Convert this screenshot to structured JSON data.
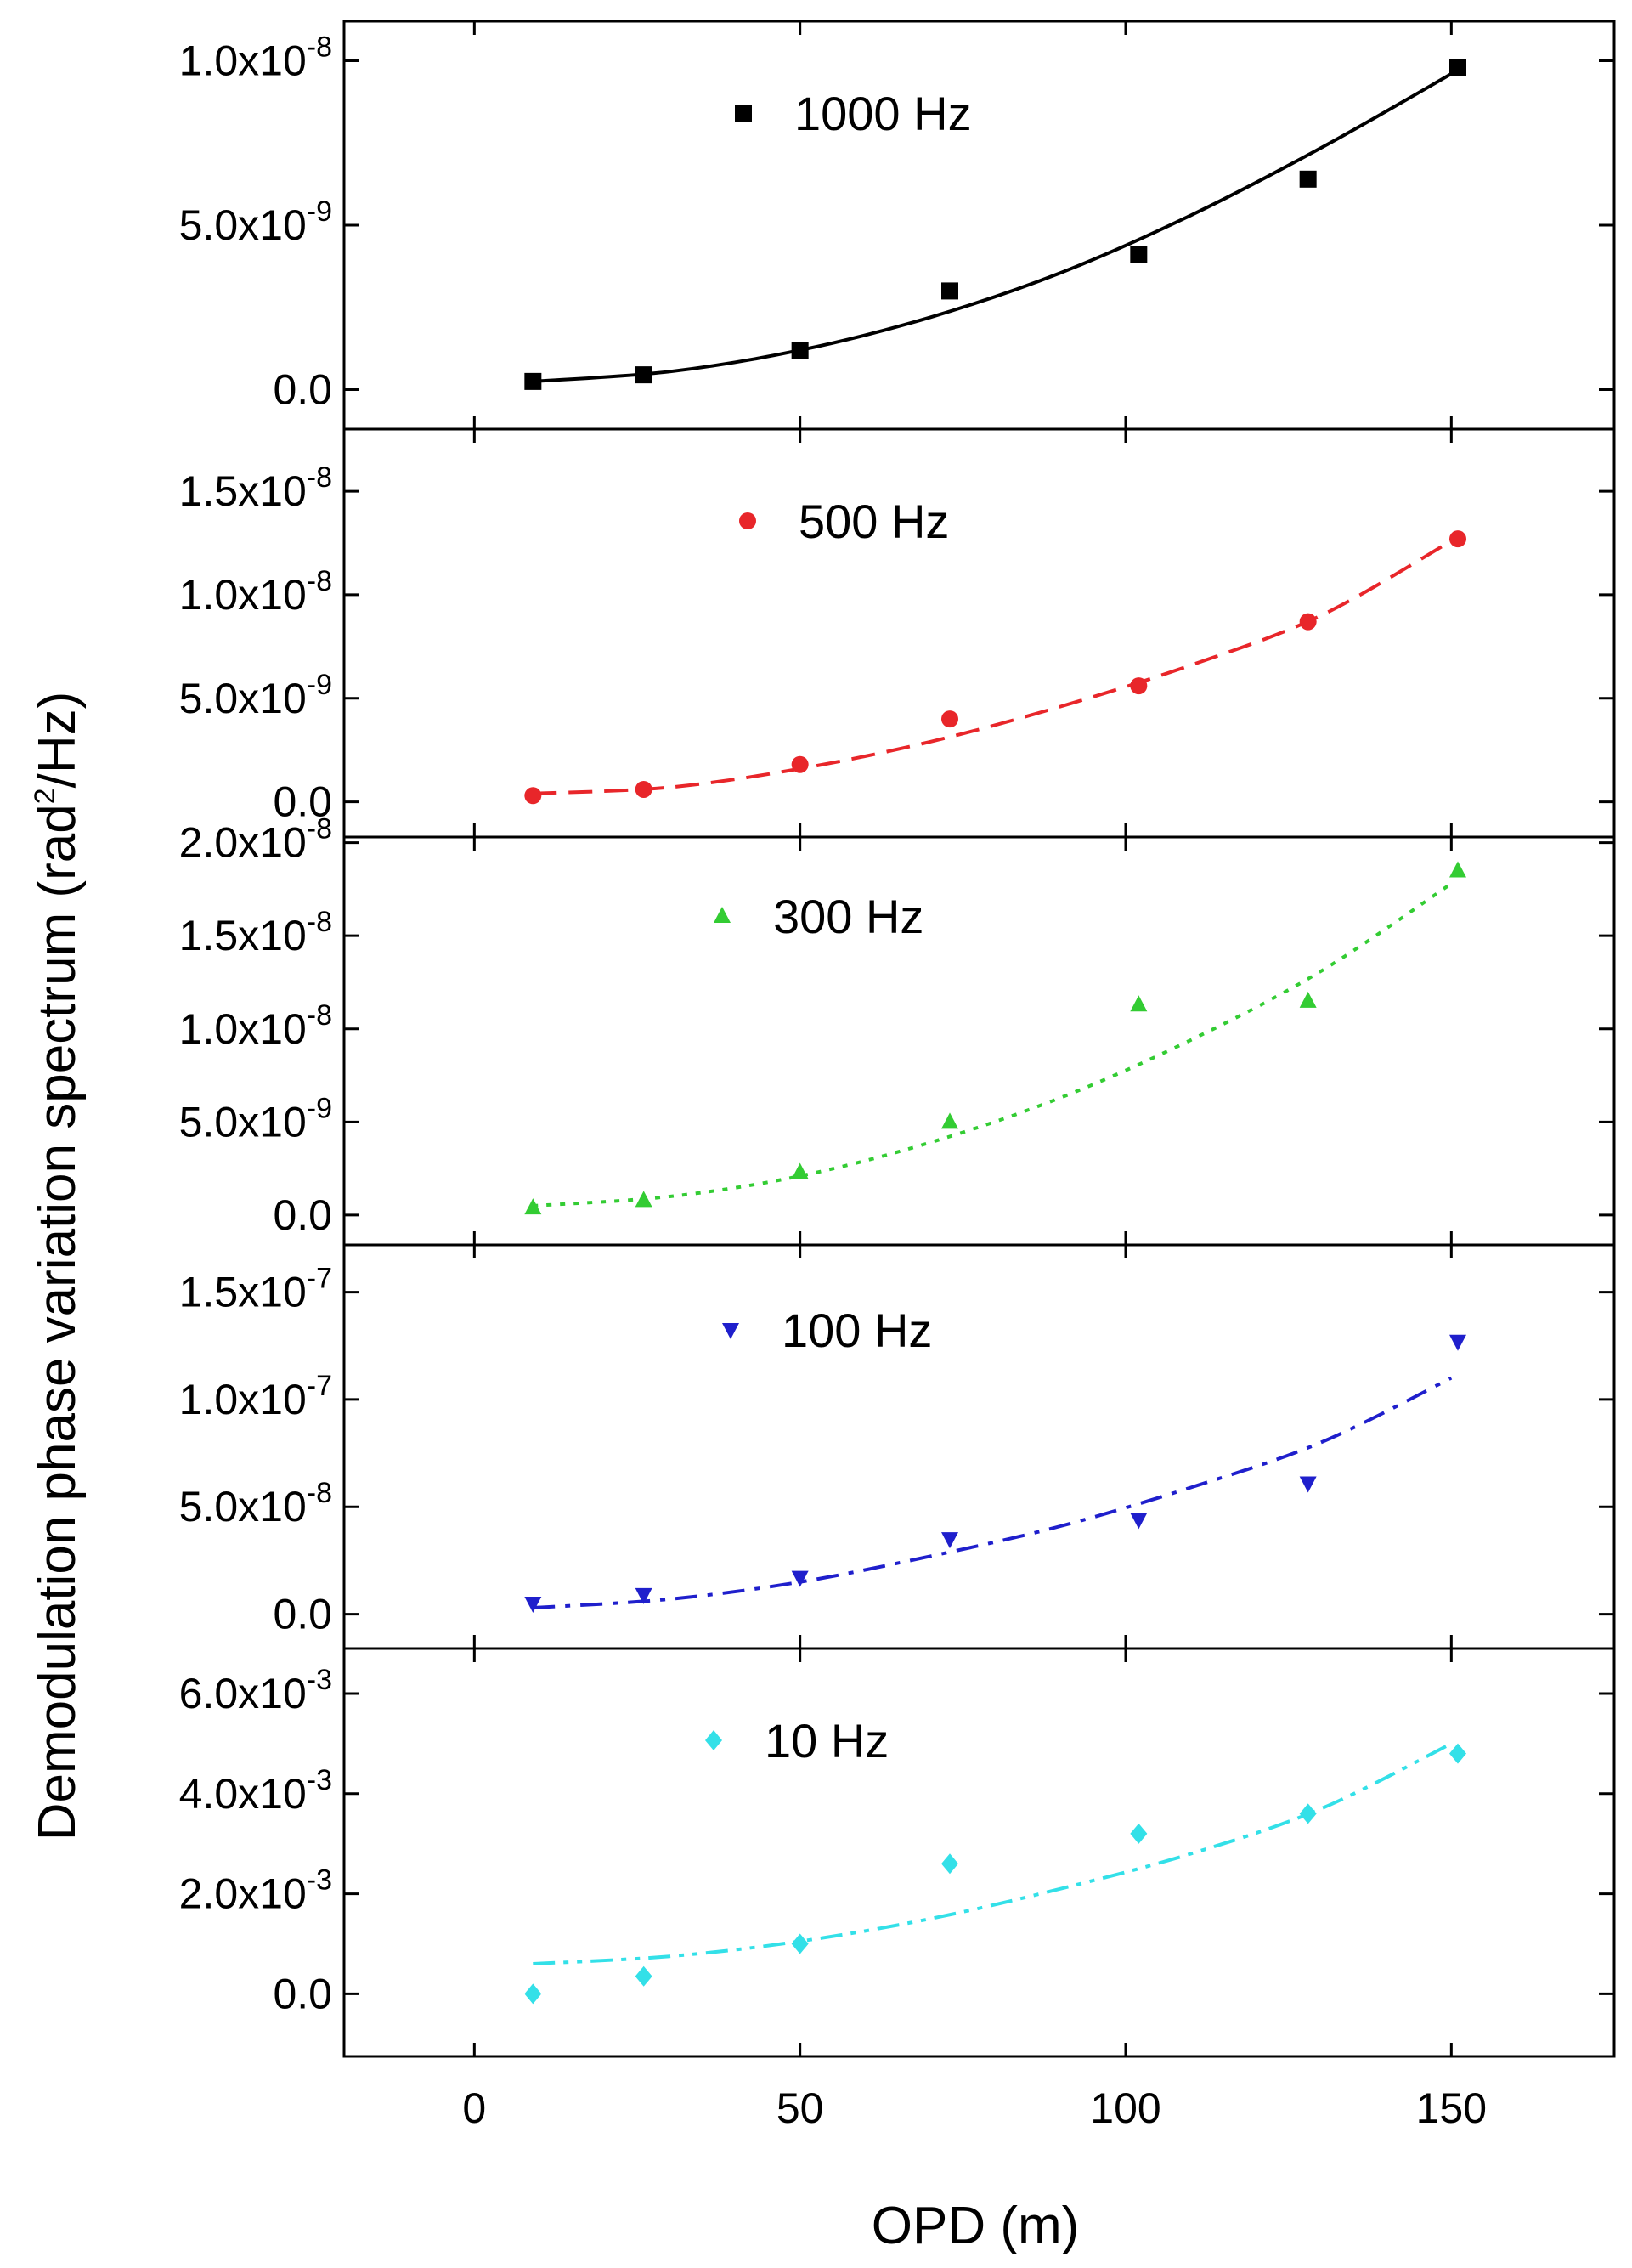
{
  "chart_data": {
    "type": "scatter",
    "stacked_panels": true,
    "xlabel": "OPD (m)",
    "ylabel_parts": [
      "Demodulation phase variation spectrum (rad",
      "2",
      "/Hz)"
    ],
    "xlim": [
      -20,
      175
    ],
    "xticks": [
      {
        "v": 0,
        "label": "0"
      },
      {
        "v": 50,
        "label": "50"
      },
      {
        "v": 100,
        "label": "100"
      },
      {
        "v": 150,
        "label": "150"
      }
    ],
    "panels": [
      {
        "legend": "1000 Hz",
        "marker": "square",
        "color": "#000000",
        "fit_style": "solid",
        "ylim": [
          -1.2e-09,
          1.12e-08
        ],
        "yticks": [
          {
            "v": 0,
            "m": "0.0",
            "e": ""
          },
          {
            "v": 5e-09,
            "m": "5.0x10",
            "e": "-9"
          },
          {
            "v": 1e-08,
            "m": "1.0x10",
            "e": "-8"
          }
        ],
        "x": [
          9,
          26,
          50,
          73,
          102,
          128,
          151
        ],
        "y": [
          2.5e-10,
          4.5e-10,
          1.2e-09,
          3e-09,
          4.1e-09,
          6.4e-09,
          9.8e-09
        ],
        "fit_x": [
          9,
          30,
          50,
          70,
          90,
          110,
          130,
          150
        ],
        "fit_y": [
          2.5e-10,
          5.5e-10,
          1.2e-09,
          2.2e-09,
          3.55e-09,
          5.3e-09,
          7.35e-09,
          9.6e-09
        ]
      },
      {
        "legend": "500 Hz",
        "marker": "circle",
        "color": "#e8262a",
        "fit_style": "dashed",
        "ylim": [
          -1.7e-09,
          1.8e-08
        ],
        "yticks": [
          {
            "v": 0,
            "m": "0.0",
            "e": ""
          },
          {
            "v": 5e-09,
            "m": "5.0x10",
            "e": "-9"
          },
          {
            "v": 1e-08,
            "m": "1.0x10",
            "e": "-8"
          },
          {
            "v": 1.5e-08,
            "m": "1.5x10",
            "e": "-8"
          }
        ],
        "x": [
          9,
          26,
          50,
          73,
          102,
          128,
          151
        ],
        "y": [
          3e-10,
          6e-10,
          1.8e-09,
          4e-09,
          5.6e-09,
          8.7e-09,
          1.27e-08
        ],
        "fit_x": [
          9,
          30,
          50,
          70,
          90,
          110,
          130,
          150
        ],
        "fit_y": [
          4e-10,
          7e-10,
          1.6e-09,
          2.9e-09,
          4.6e-09,
          6.6e-09,
          9e-09,
          1.26e-08
        ]
      },
      {
        "legend": "300 Hz",
        "marker": "triangle-up",
        "color": "#33cc33",
        "fit_style": "dotted",
        "ylim": [
          -1.6e-09,
          2.03e-08
        ],
        "yticks": [
          {
            "v": 0,
            "m": "0.0",
            "e": ""
          },
          {
            "v": 5e-09,
            "m": "5.0x10",
            "e": "-9"
          },
          {
            "v": 1e-08,
            "m": "1.0x10",
            "e": "-8"
          },
          {
            "v": 1.5e-08,
            "m": "1.5x10",
            "e": "-8"
          },
          {
            "v": 2e-08,
            "m": "2.0x10",
            "e": "-8"
          }
        ],
        "x": [
          9,
          26,
          50,
          73,
          102,
          128,
          151
        ],
        "y": [
          4e-10,
          8e-10,
          2.3e-09,
          5e-09,
          1.13e-08,
          1.15e-08,
          1.85e-08
        ],
        "fit_x": [
          9,
          30,
          50,
          70,
          90,
          110,
          130,
          150
        ],
        "fit_y": [
          5e-10,
          1e-09,
          2.1e-09,
          3.9e-09,
          6.3e-09,
          9.4e-09,
          1.31e-08,
          1.78e-08
        ]
      },
      {
        "legend": "100 Hz",
        "marker": "triangle-down",
        "color": "#1f1fcc",
        "fit_style": "dashdot",
        "ylim": [
          -1.6e-08,
          1.72e-07
        ],
        "yticks": [
          {
            "v": 0,
            "m": "0.0",
            "e": ""
          },
          {
            "v": 5e-08,
            "m": "5.0x10",
            "e": "-8"
          },
          {
            "v": 1e-07,
            "m": "1.0x10",
            "e": "-7"
          },
          {
            "v": 1.5e-07,
            "m": "1.5x10",
            "e": "-7"
          }
        ],
        "x": [
          9,
          26,
          50,
          73,
          102,
          128,
          151
        ],
        "y": [
          5e-09,
          9e-09,
          1.7e-08,
          3.5e-08,
          4.4e-08,
          6.1e-08,
          1.27e-07
        ],
        "fit_x": [
          9,
          30,
          50,
          70,
          90,
          110,
          130,
          150
        ],
        "fit_y": [
          3e-09,
          7e-09,
          1.5e-08,
          2.7e-08,
          4.1e-08,
          5.9e-08,
          8e-08,
          1.1e-07
        ]
      },
      {
        "legend": "10 Hz",
        "marker": "diamond",
        "color": "#33e0e8",
        "fit_style": "dashdotdot",
        "ylim": [
          -0.00125,
          0.0069
        ],
        "yticks": [
          {
            "v": 0,
            "m": "0.0",
            "e": ""
          },
          {
            "v": 0.002,
            "m": "2.0x10",
            "e": "-3"
          },
          {
            "v": 0.004,
            "m": "4.0x10",
            "e": "-3"
          },
          {
            "v": 0.006,
            "m": "6.0x10",
            "e": "-3"
          }
        ],
        "x": [
          9,
          26,
          50,
          73,
          102,
          128,
          151
        ],
        "y": [
          0.0,
          0.00035,
          0.001,
          0.0026,
          0.0032,
          0.0036,
          0.0048
        ],
        "fit_x": [
          9,
          30,
          50,
          70,
          90,
          110,
          130,
          150
        ],
        "fit_y": [
          0.0006,
          0.00075,
          0.00105,
          0.0015,
          0.0021,
          0.0028,
          0.0037,
          0.005
        ]
      }
    ]
  }
}
